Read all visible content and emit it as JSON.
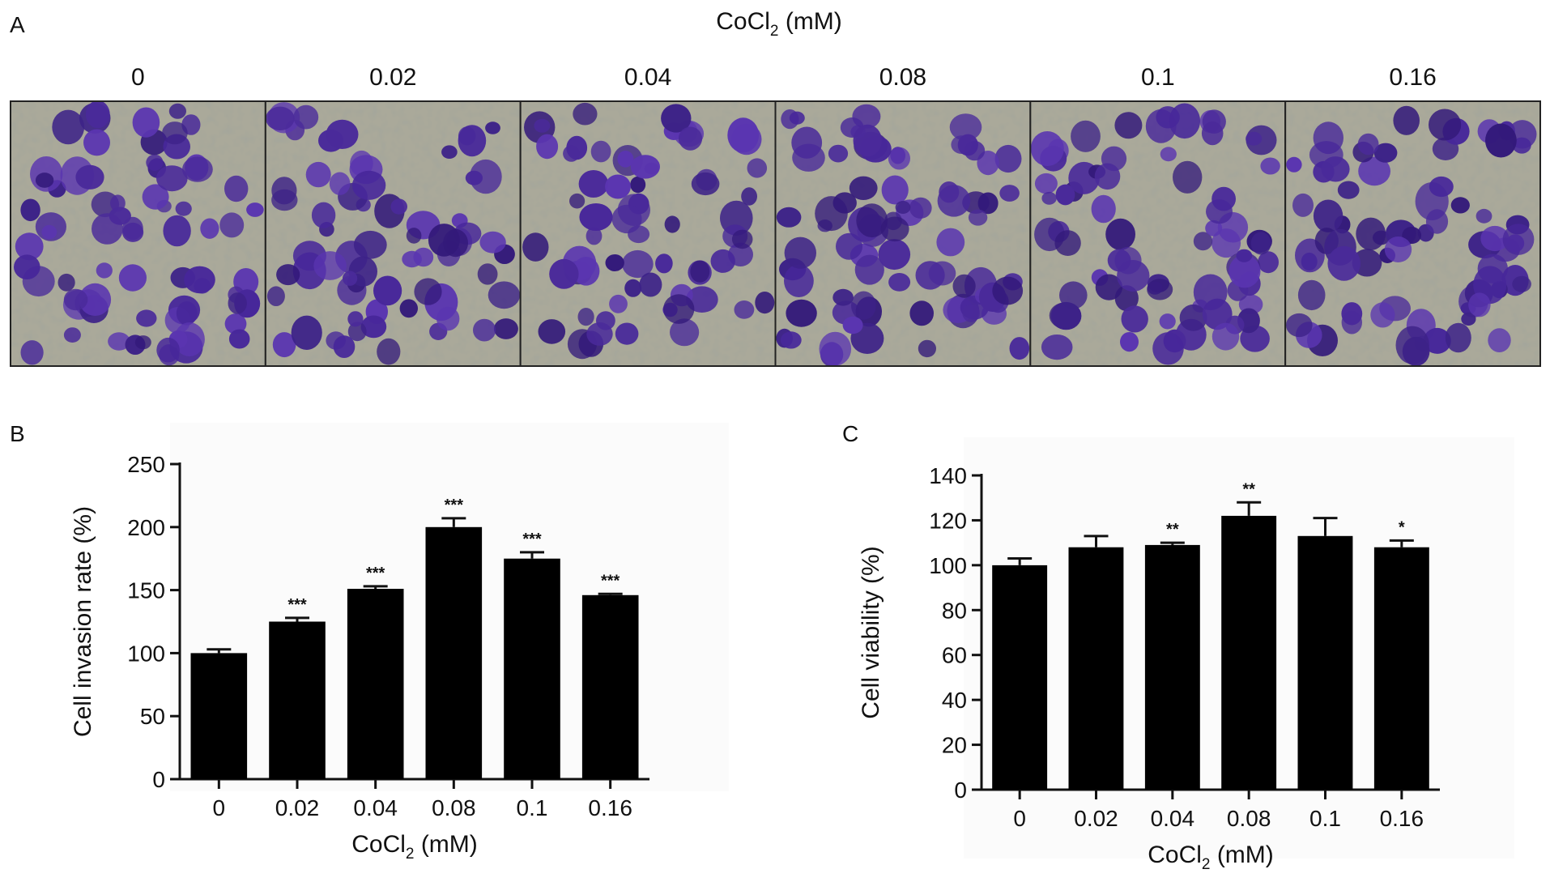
{
  "panel_a": {
    "label": "A",
    "title_main": "CoCl",
    "title_sub": "2",
    "title_unit": " (mM)",
    "concentrations": [
      "0",
      "0.02",
      "0.04",
      "0.08",
      "0.1",
      "0.16"
    ]
  },
  "chart_data": [
    {
      "panel": "B",
      "type": "bar",
      "categories": [
        "0",
        "0.02",
        "0.04",
        "0.08",
        "0.1",
        "0.16"
      ],
      "values": [
        100,
        125,
        151,
        200,
        175,
        146
      ],
      "errors": [
        3,
        3,
        2,
        7,
        5,
        1
      ],
      "significance": [
        "",
        "***",
        "***",
        "***",
        "***",
        "***"
      ],
      "ylabel": "Cell invasion rate (%)",
      "xlabel_main": "CoCl",
      "xlabel_sub": "2",
      "xlabel_unit": " (mM)",
      "ylim": [
        0,
        250
      ],
      "yticks": [
        0,
        50,
        100,
        150,
        200,
        250
      ],
      "bar_color": "#000000"
    },
    {
      "panel": "C",
      "type": "bar",
      "categories": [
        "0",
        "0.02",
        "0.04",
        "0.08",
        "0.1",
        "0.16"
      ],
      "values": [
        100,
        108,
        109,
        122,
        113,
        108
      ],
      "errors": [
        3,
        5,
        1,
        6,
        8,
        3
      ],
      "significance": [
        "",
        "",
        "**",
        "**",
        "",
        "*"
      ],
      "ylabel": "Cell viability (%)",
      "xlabel_main": "CoCl",
      "xlabel_sub": "2",
      "xlabel_unit": " (mM)",
      "ylim": [
        0,
        140
      ],
      "yticks": [
        0,
        20,
        40,
        60,
        80,
        100,
        120,
        140
      ],
      "bar_color": "#000000"
    }
  ]
}
